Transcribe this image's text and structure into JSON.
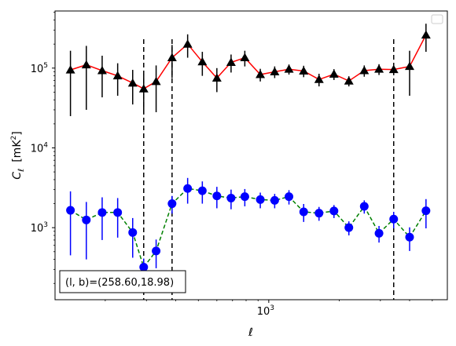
{
  "chart_data": {
    "type": "line",
    "xscale": "log",
    "yscale": "log",
    "xlabel": "ℓ",
    "ylabel_main": "C",
    "ylabel_sub": "ℓ",
    "ylabel_unit_open": "[mK",
    "ylabel_unit_sup": "2",
    "ylabel_unit_close": "]",
    "xlim": [
      122,
      5800
    ],
    "ylim": [
      125,
      520000
    ],
    "x_ticks": [
      {
        "value": 1000,
        "base": "10",
        "exp": "3"
      }
    ],
    "y_ticks": [
      {
        "value": 1000,
        "base": "10",
        "exp": "3"
      },
      {
        "value": 10000,
        "base": "10",
        "exp": "4"
      },
      {
        "value": 100000,
        "base": "10",
        "exp": "5"
      }
    ],
    "x": [
      142,
      166,
      194,
      226,
      262,
      292,
      330,
      386,
      450,
      520,
      600,
      690,
      790,
      920,
      1060,
      1220,
      1410,
      1640,
      1900,
      2200,
      2560,
      2960,
      3420,
      4000,
      4700
    ],
    "series": [
      {
        "marker": "triangle",
        "color": "#000000",
        "line_color": "#ff0000",
        "line_style": "solid",
        "values": [
          95000,
          110000,
          93000,
          80000,
          65000,
          55000,
          68000,
          135000,
          200000,
          120000,
          75000,
          118000,
          135000,
          83000,
          90000,
          97000,
          92000,
          72000,
          84000,
          69000,
          93000,
          97000,
          96000,
          105000,
          260000
        ],
        "err": [
          70000,
          80000,
          50000,
          35000,
          30000,
          28000,
          40000,
          60000,
          65000,
          40000,
          25000,
          30000,
          30000,
          15000,
          15000,
          14000,
          15000,
          13000,
          13000,
          10000,
          15000,
          15000,
          12000,
          60000,
          100000
        ]
      },
      {
        "marker": "circle",
        "color": "#0000ff",
        "line_color": "#008000",
        "line_style": "dashed",
        "values": [
          1650,
          1250,
          1550,
          1550,
          870,
          320,
          510,
          2000,
          3100,
          2900,
          2500,
          2350,
          2450,
          2250,
          2200,
          2450,
          1580,
          1520,
          1620,
          1000,
          1850,
          850,
          1280,
          760,
          1630
        ],
        "err": [
          1200,
          850,
          850,
          800,
          450,
          90,
          200,
          500,
          1100,
          900,
          750,
          650,
          600,
          500,
          450,
          500,
          400,
          300,
          300,
          200,
          350,
          200,
          300,
          250,
          650
        ]
      }
    ],
    "vlines": [
      292,
      386,
      3420
    ],
    "vline_style": "dashed",
    "vline_range": [
      125,
      230000
    ],
    "annotation": "(l, b)=(258.60,18.98)",
    "legend": "top-right",
    "grid": false
  }
}
